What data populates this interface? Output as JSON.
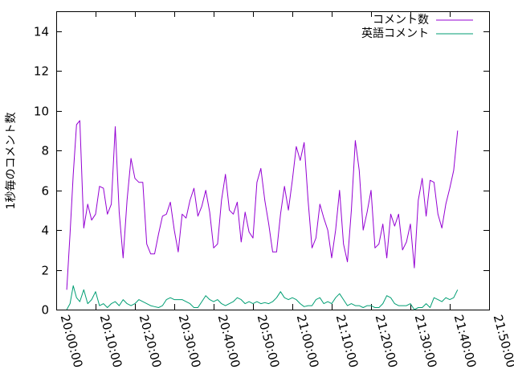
{
  "chart_data": {
    "type": "line",
    "title": "",
    "xlabel": "",
    "ylabel": "1秒毎のコメント数",
    "ylim": [
      0,
      15
    ],
    "yticks": [
      0,
      2,
      4,
      6,
      8,
      10,
      12,
      14
    ],
    "ytick_labels": [
      "0",
      "2",
      "4",
      "6",
      "8",
      "10",
      "12",
      "14"
    ],
    "xlim": [
      "20:00:00",
      "21:50:00"
    ],
    "xticks": [
      "20:00:00",
      "20:10:00",
      "20:20:00",
      "20:30:00",
      "20:40:00",
      "20:50:00",
      "21:00:00",
      "21:10:00",
      "21:20:00",
      "21:30:00",
      "21:40:00",
      "21:50:00"
    ],
    "grid": false,
    "legend_position": "top-right",
    "series": [
      {
        "name": "コメント数",
        "color": "#9400d3",
        "points": [
          [
            "20:02:40",
            1.0
          ],
          [
            "20:03:30",
            3.8
          ],
          [
            "20:04:20",
            6.8
          ],
          [
            "20:05:10",
            9.3
          ],
          [
            "20:06:00",
            9.5
          ],
          [
            "20:07:00",
            4.1
          ],
          [
            "20:08:00",
            5.3
          ],
          [
            "20:09:00",
            4.5
          ],
          [
            "20:10:00",
            4.8
          ],
          [
            "20:11:00",
            6.2
          ],
          [
            "20:12:00",
            6.1
          ],
          [
            "20:13:00",
            4.8
          ],
          [
            "20:14:00",
            5.3
          ],
          [
            "20:15:00",
            9.2
          ],
          [
            "20:16:00",
            4.9
          ],
          [
            "20:17:00",
            2.6
          ],
          [
            "20:18:00",
            5.5
          ],
          [
            "20:19:00",
            7.6
          ],
          [
            "20:20:00",
            6.6
          ],
          [
            "20:21:00",
            6.4
          ],
          [
            "20:22:00",
            6.4
          ],
          [
            "20:23:00",
            3.3
          ],
          [
            "20:24:00",
            2.8
          ],
          [
            "20:25:00",
            2.8
          ],
          [
            "20:26:00",
            3.8
          ],
          [
            "20:27:00",
            4.7
          ],
          [
            "20:28:00",
            4.8
          ],
          [
            "20:29:00",
            5.4
          ],
          [
            "20:30:00",
            4.0
          ],
          [
            "20:31:00",
            2.9
          ],
          [
            "20:32:00",
            4.8
          ],
          [
            "20:33:00",
            4.6
          ],
          [
            "20:34:00",
            5.5
          ],
          [
            "20:35:00",
            6.1
          ],
          [
            "20:36:00",
            4.7
          ],
          [
            "20:37:00",
            5.2
          ],
          [
            "20:38:00",
            6.0
          ],
          [
            "20:39:00",
            4.9
          ],
          [
            "20:40:00",
            3.1
          ],
          [
            "20:41:00",
            3.3
          ],
          [
            "20:42:00",
            5.5
          ],
          [
            "20:43:00",
            6.8
          ],
          [
            "20:44:00",
            5.0
          ],
          [
            "20:45:00",
            4.8
          ],
          [
            "20:46:00",
            5.4
          ],
          [
            "20:47:00",
            3.4
          ],
          [
            "20:48:00",
            4.9
          ],
          [
            "20:49:00",
            3.9
          ],
          [
            "20:50:00",
            3.6
          ],
          [
            "20:51:00",
            6.4
          ],
          [
            "20:52:00",
            7.1
          ],
          [
            "20:53:00",
            5.5
          ],
          [
            "20:54:00",
            4.3
          ],
          [
            "20:55:00",
            2.9
          ],
          [
            "20:56:00",
            2.9
          ],
          [
            "20:57:00",
            4.8
          ],
          [
            "20:58:00",
            6.2
          ],
          [
            "20:59:00",
            5.0
          ],
          [
            "21:00:00",
            6.5
          ],
          [
            "21:01:00",
            8.2
          ],
          [
            "21:02:00",
            7.5
          ],
          [
            "21:03:00",
            8.4
          ],
          [
            "21:04:00",
            5.5
          ],
          [
            "21:05:00",
            3.1
          ],
          [
            "21:06:00",
            3.6
          ],
          [
            "21:07:00",
            5.3
          ],
          [
            "21:08:00",
            4.6
          ],
          [
            "21:09:00",
            4.0
          ],
          [
            "21:10:00",
            2.6
          ],
          [
            "21:11:00",
            4.0
          ],
          [
            "21:12:00",
            6.0
          ],
          [
            "21:13:00",
            3.3
          ],
          [
            "21:14:00",
            2.4
          ],
          [
            "21:15:00",
            5.0
          ],
          [
            "21:16:00",
            8.5
          ],
          [
            "21:17:00",
            7.0
          ],
          [
            "21:18:00",
            4.0
          ],
          [
            "21:19:00",
            4.9
          ],
          [
            "21:20:00",
            6.0
          ],
          [
            "21:21:00",
            3.1
          ],
          [
            "21:22:00",
            3.3
          ],
          [
            "21:23:00",
            4.3
          ],
          [
            "21:24:00",
            2.6
          ],
          [
            "21:25:00",
            4.8
          ],
          [
            "21:26:00",
            4.2
          ],
          [
            "21:27:00",
            4.8
          ],
          [
            "21:28:00",
            3.0
          ],
          [
            "21:29:00",
            3.4
          ],
          [
            "21:30:00",
            4.3
          ],
          [
            "21:31:00",
            2.1
          ],
          [
            "21:32:00",
            5.5
          ],
          [
            "21:33:00",
            6.6
          ],
          [
            "21:34:00",
            4.7
          ],
          [
            "21:35:00",
            6.5
          ],
          [
            "21:36:00",
            6.4
          ],
          [
            "21:37:00",
            4.8
          ],
          [
            "21:38:00",
            4.1
          ],
          [
            "21:39:00",
            5.3
          ],
          [
            "21:40:00",
            6.1
          ],
          [
            "21:41:00",
            7.0
          ],
          [
            "21:42:00",
            9.0
          ]
        ]
      },
      {
        "name": "英語コメント",
        "color": "#009e73",
        "points": [
          [
            "20:02:40",
            0.0
          ],
          [
            "20:03:30",
            0.3
          ],
          [
            "20:04:20",
            1.2
          ],
          [
            "20:05:10",
            0.6
          ],
          [
            "20:06:00",
            0.4
          ],
          [
            "20:07:00",
            1.0
          ],
          [
            "20:08:00",
            0.3
          ],
          [
            "20:09:00",
            0.5
          ],
          [
            "20:10:00",
            0.9
          ],
          [
            "20:11:00",
            0.2
          ],
          [
            "20:12:00",
            0.3
          ],
          [
            "20:13:00",
            0.1
          ],
          [
            "20:14:00",
            0.3
          ],
          [
            "20:15:00",
            0.4
          ],
          [
            "20:16:00",
            0.2
          ],
          [
            "20:17:00",
            0.5
          ],
          [
            "20:18:00",
            0.3
          ],
          [
            "20:19:00",
            0.2
          ],
          [
            "20:20:00",
            0.3
          ],
          [
            "20:21:00",
            0.5
          ],
          [
            "20:22:00",
            0.4
          ],
          [
            "20:23:00",
            0.3
          ],
          [
            "20:24:00",
            0.2
          ],
          [
            "20:25:00",
            0.15
          ],
          [
            "20:26:00",
            0.1
          ],
          [
            "20:27:00",
            0.2
          ],
          [
            "20:28:00",
            0.5
          ],
          [
            "20:29:00",
            0.6
          ],
          [
            "20:30:00",
            0.5
          ],
          [
            "20:31:00",
            0.5
          ],
          [
            "20:32:00",
            0.5
          ],
          [
            "20:33:00",
            0.4
          ],
          [
            "20:34:00",
            0.3
          ],
          [
            "20:35:00",
            0.1
          ],
          [
            "20:36:00",
            0.1
          ],
          [
            "20:37:00",
            0.4
          ],
          [
            "20:38:00",
            0.7
          ],
          [
            "20:39:00",
            0.5
          ],
          [
            "20:40:00",
            0.4
          ],
          [
            "20:41:00",
            0.5
          ],
          [
            "20:42:00",
            0.3
          ],
          [
            "20:43:00",
            0.2
          ],
          [
            "20:44:00",
            0.3
          ],
          [
            "20:45:00",
            0.4
          ],
          [
            "20:46:00",
            0.6
          ],
          [
            "20:47:00",
            0.5
          ],
          [
            "20:48:00",
            0.3
          ],
          [
            "20:49:00",
            0.4
          ],
          [
            "20:50:00",
            0.3
          ],
          [
            "20:51:00",
            0.4
          ],
          [
            "20:52:00",
            0.3
          ],
          [
            "20:53:00",
            0.35
          ],
          [
            "20:54:00",
            0.3
          ],
          [
            "20:55:00",
            0.4
          ],
          [
            "20:56:00",
            0.6
          ],
          [
            "20:57:00",
            0.9
          ],
          [
            "20:58:00",
            0.6
          ],
          [
            "20:59:00",
            0.5
          ],
          [
            "21:00:00",
            0.6
          ],
          [
            "21:01:00",
            0.5
          ],
          [
            "21:02:00",
            0.3
          ],
          [
            "21:03:00",
            0.15
          ],
          [
            "21:04:00",
            0.2
          ],
          [
            "21:05:00",
            0.2
          ],
          [
            "21:06:00",
            0.5
          ],
          [
            "21:07:00",
            0.6
          ],
          [
            "21:08:00",
            0.3
          ],
          [
            "21:09:00",
            0.4
          ],
          [
            "21:10:00",
            0.3
          ],
          [
            "21:11:00",
            0.6
          ],
          [
            "21:12:00",
            0.8
          ],
          [
            "21:13:00",
            0.5
          ],
          [
            "21:14:00",
            0.2
          ],
          [
            "21:15:00",
            0.3
          ],
          [
            "21:16:00",
            0.2
          ],
          [
            "21:17:00",
            0.2
          ],
          [
            "21:18:00",
            0.1
          ],
          [
            "21:19:00",
            0.2
          ],
          [
            "21:20:00",
            0.2
          ],
          [
            "21:21:00",
            0.1
          ],
          [
            "21:22:00",
            0.1
          ],
          [
            "21:23:00",
            0.3
          ],
          [
            "21:24:00",
            0.7
          ],
          [
            "21:25:00",
            0.6
          ],
          [
            "21:26:00",
            0.3
          ],
          [
            "21:27:00",
            0.2
          ],
          [
            "21:28:00",
            0.2
          ],
          [
            "21:29:00",
            0.2
          ],
          [
            "21:30:00",
            0.3
          ],
          [
            "21:31:00",
            0.0
          ],
          [
            "21:32:00",
            0.1
          ],
          [
            "21:33:00",
            0.1
          ],
          [
            "21:34:00",
            0.3
          ],
          [
            "21:35:00",
            0.1
          ],
          [
            "21:36:00",
            0.6
          ],
          [
            "21:37:00",
            0.5
          ],
          [
            "21:38:00",
            0.4
          ],
          [
            "21:39:00",
            0.6
          ],
          [
            "21:40:00",
            0.5
          ],
          [
            "21:41:00",
            0.6
          ],
          [
            "21:42:00",
            1.0
          ]
        ]
      }
    ]
  }
}
